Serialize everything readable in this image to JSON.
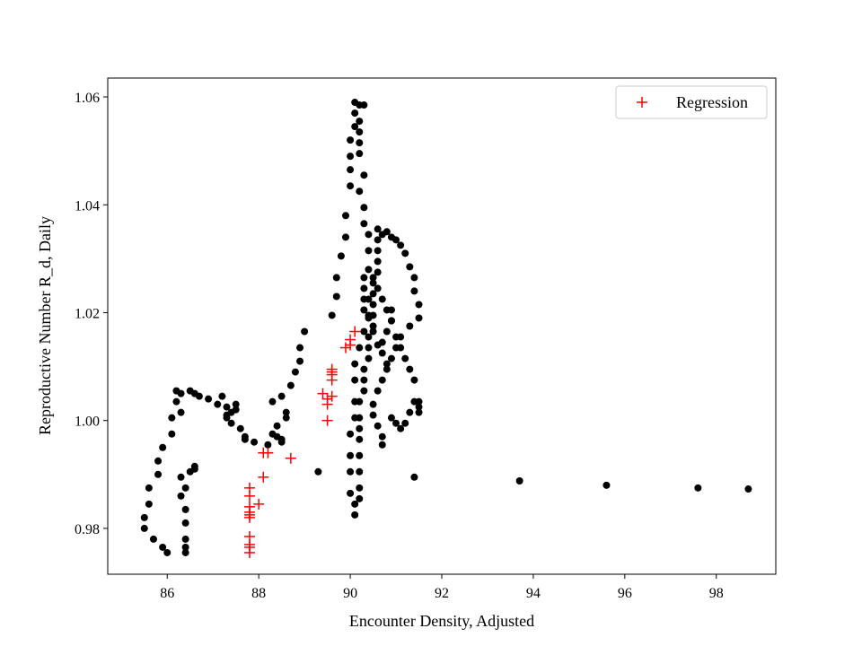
{
  "chart_data": {
    "type": "scatter",
    "title": "",
    "xlabel": "Encounter Density, Adjusted",
    "ylabel": "Reproductive Number R_d, Daily",
    "xlim": [
      84.7,
      99.3
    ],
    "ylim": [
      0.9715,
      1.0635
    ],
    "xticks": [
      86,
      88,
      90,
      92,
      94,
      96,
      98
    ],
    "yticks": [
      0.98,
      1.0,
      1.02,
      1.04,
      1.06
    ],
    "grid": false,
    "legend": {
      "position": "top-right",
      "entries": [
        "Regression"
      ]
    },
    "series": [
      {
        "marker": "dot",
        "color": "#000000",
        "points": [
          [
            85.5,
            0.982
          ],
          [
            85.5,
            0.98
          ],
          [
            85.6,
            0.9845
          ],
          [
            85.6,
            0.9875
          ],
          [
            85.7,
            0.978
          ],
          [
            85.8,
            0.99
          ],
          [
            85.8,
            0.9925
          ],
          [
            85.9,
            0.9765
          ],
          [
            85.9,
            0.995
          ],
          [
            86.0,
            0.9755
          ],
          [
            86.1,
            0.9975
          ],
          [
            86.1,
            1.0005
          ],
          [
            86.2,
            1.0055
          ],
          [
            86.2,
            1.0035
          ],
          [
            86.3,
            1.0015
          ],
          [
            86.3,
            1.005
          ],
          [
            86.3,
            0.986
          ],
          [
            86.3,
            0.9895
          ],
          [
            86.4,
            0.9875
          ],
          [
            86.4,
            0.9835
          ],
          [
            86.4,
            0.981
          ],
          [
            86.4,
            0.978
          ],
          [
            86.4,
            0.9765
          ],
          [
            86.4,
            0.9755
          ],
          [
            86.5,
            0.9905
          ],
          [
            86.5,
            1.0055
          ],
          [
            86.6,
            1.005
          ],
          [
            86.6,
            0.991
          ],
          [
            86.6,
            0.9915
          ],
          [
            86.7,
            1.0045
          ],
          [
            86.9,
            1.004
          ],
          [
            87.1,
            1.003
          ],
          [
            87.2,
            1.0045
          ],
          [
            87.3,
            1.0025
          ],
          [
            87.3,
            1.001
          ],
          [
            87.3,
            1.0005
          ],
          [
            87.4,
            1.0015
          ],
          [
            87.4,
            0.9995
          ],
          [
            87.5,
            1.002
          ],
          [
            87.5,
            1.003
          ],
          [
            87.6,
            0.9985
          ],
          [
            87.7,
            0.997
          ],
          [
            87.7,
            0.9965
          ],
          [
            87.9,
            0.996
          ],
          [
            88.2,
            0.9955
          ],
          [
            88.3,
            0.9975
          ],
          [
            88.4,
            0.999
          ],
          [
            88.4,
            0.997
          ],
          [
            88.5,
            0.9965
          ],
          [
            88.5,
            0.996
          ],
          [
            88.6,
            1.0005
          ],
          [
            88.6,
            1.0015
          ],
          [
            88.3,
            1.0035
          ],
          [
            88.5,
            1.0045
          ],
          [
            88.7,
            1.0065
          ],
          [
            88.8,
            1.009
          ],
          [
            88.9,
            1.011
          ],
          [
            88.9,
            1.0135
          ],
          [
            89.0,
            1.0165
          ],
          [
            89.3,
            0.9905
          ],
          [
            89.6,
            1.0195
          ],
          [
            89.7,
            1.023
          ],
          [
            89.7,
            1.0265
          ],
          [
            89.8,
            1.0305
          ],
          [
            89.9,
            1.034
          ],
          [
            89.9,
            1.038
          ],
          [
            90.0,
            1.0435
          ],
          [
            90.0,
            1.0465
          ],
          [
            90.0,
            1.049
          ],
          [
            90.0,
            1.052
          ],
          [
            90.1,
            1.0545
          ],
          [
            90.1,
            1.057
          ],
          [
            90.1,
            1.059
          ],
          [
            90.2,
            1.0585
          ],
          [
            90.2,
            1.0555
          ],
          [
            90.2,
            1.0535
          ],
          [
            90.2,
            1.0515
          ],
          [
            90.2,
            1.0495
          ],
          [
            90.3,
            1.0585
          ],
          [
            90.2,
            1.0425
          ],
          [
            90.3,
            1.0455
          ],
          [
            90.3,
            1.0395
          ],
          [
            90.3,
            1.0365
          ],
          [
            90.4,
            1.0345
          ],
          [
            90.4,
            1.0315
          ],
          [
            90.4,
            1.028
          ],
          [
            90.3,
            1.0265
          ],
          [
            90.3,
            1.0245
          ],
          [
            90.3,
            1.0225
          ],
          [
            90.4,
            1.0195
          ],
          [
            90.3,
            1.0165
          ],
          [
            90.2,
            1.0135
          ],
          [
            90.1,
            1.0105
          ],
          [
            90.1,
            1.0075
          ],
          [
            90.1,
            1.0035
          ],
          [
            90.1,
            1.0005
          ],
          [
            90.0,
            0.9975
          ],
          [
            90.0,
            0.9935
          ],
          [
            90.0,
            0.9905
          ],
          [
            90.0,
            0.9865
          ],
          [
            90.1,
            0.9845
          ],
          [
            90.1,
            0.9825
          ],
          [
            90.2,
            0.9855
          ],
          [
            90.2,
            0.9875
          ],
          [
            90.2,
            0.9905
          ],
          [
            90.2,
            0.9935
          ],
          [
            90.2,
            0.9965
          ],
          [
            90.2,
            0.9985
          ],
          [
            90.2,
            1.0005
          ],
          [
            90.2,
            1.0035
          ],
          [
            90.3,
            1.0055
          ],
          [
            90.3,
            1.0075
          ],
          [
            90.3,
            1.0095
          ],
          [
            90.4,
            1.0115
          ],
          [
            90.4,
            1.0135
          ],
          [
            90.4,
            1.0155
          ],
          [
            90.5,
            1.0175
          ],
          [
            90.5,
            1.0195
          ],
          [
            90.5,
            1.0215
          ],
          [
            90.5,
            1.0235
          ],
          [
            90.5,
            1.0255
          ],
          [
            90.6,
            1.0275
          ],
          [
            90.6,
            1.0295
          ],
          [
            90.6,
            1.0315
          ],
          [
            90.6,
            1.0335
          ],
          [
            90.6,
            1.0355
          ],
          [
            90.7,
            1.0345
          ],
          [
            90.8,
            1.035
          ],
          [
            90.9,
            1.034
          ],
          [
            91.0,
            1.0335
          ],
          [
            91.1,
            1.0325
          ],
          [
            91.2,
            1.031
          ],
          [
            91.3,
            1.0285
          ],
          [
            91.4,
            1.0265
          ],
          [
            91.4,
            1.024
          ],
          [
            91.5,
            1.0215
          ],
          [
            91.5,
            1.019
          ],
          [
            91.3,
            1.0175
          ],
          [
            91.1,
            1.0155
          ],
          [
            91.0,
            1.0135
          ],
          [
            90.9,
            1.0115
          ],
          [
            90.8,
            1.0095
          ],
          [
            90.7,
            1.0075
          ],
          [
            90.6,
            1.0055
          ],
          [
            90.5,
            1.003
          ],
          [
            90.5,
            1.001
          ],
          [
            90.6,
            0.999
          ],
          [
            90.7,
            0.997
          ],
          [
            90.7,
            0.9955
          ],
          [
            90.9,
            1.0005
          ],
          [
            91.0,
            0.9995
          ],
          [
            91.1,
            0.9985
          ],
          [
            91.2,
            0.9995
          ],
          [
            91.3,
            1.0015
          ],
          [
            91.4,
            1.0035
          ],
          [
            91.5,
            1.0035
          ],
          [
            91.5,
            1.0025
          ],
          [
            91.5,
            1.0015
          ],
          [
            91.4,
            1.0075
          ],
          [
            91.3,
            1.0095
          ],
          [
            91.2,
            1.0115
          ],
          [
            91.1,
            1.0135
          ],
          [
            91.0,
            1.0155
          ],
          [
            90.9,
            1.0185
          ],
          [
            90.8,
            1.0205
          ],
          [
            90.7,
            1.0225
          ],
          [
            90.6,
            1.0245
          ],
          [
            90.5,
            1.0265
          ],
          [
            90.4,
            1.0225
          ],
          [
            90.3,
            1.0205
          ],
          [
            90.4,
            1.019
          ],
          [
            90.5,
            1.0165
          ],
          [
            90.6,
            1.014
          ],
          [
            90.7,
            1.0125
          ],
          [
            90.8,
            1.0105
          ],
          [
            90.7,
            1.0145
          ],
          [
            90.8,
            1.0165
          ],
          [
            90.9,
            1.0185
          ],
          [
            90.9,
            1.0205
          ],
          [
            91.4,
            0.9895
          ],
          [
            93.7,
            0.9888
          ],
          [
            95.6,
            0.988
          ],
          [
            97.6,
            0.9875
          ],
          [
            98.7,
            0.9873
          ]
        ]
      },
      {
        "name": "Regression",
        "marker": "plus",
        "color": "#ff0000",
        "points": [
          [
            87.8,
            0.9875
          ],
          [
            87.8,
            0.986
          ],
          [
            87.8,
            0.984
          ],
          [
            87.8,
            0.983
          ],
          [
            87.8,
            0.9825
          ],
          [
            87.8,
            0.982
          ],
          [
            87.8,
            0.9785
          ],
          [
            87.8,
            0.977
          ],
          [
            87.8,
            0.9765
          ],
          [
            87.8,
            0.9755
          ],
          [
            88.0,
            0.9845
          ],
          [
            88.1,
            0.9895
          ],
          [
            88.1,
            0.994
          ],
          [
            88.2,
            0.994
          ],
          [
            88.7,
            0.993
          ],
          [
            89.5,
            1.0
          ],
          [
            89.4,
            1.005
          ],
          [
            89.5,
            1.003
          ],
          [
            89.5,
            1.004
          ],
          [
            89.6,
            1.0045
          ],
          [
            89.6,
            1.0075
          ],
          [
            89.6,
            1.0085
          ],
          [
            89.6,
            1.009
          ],
          [
            89.6,
            1.0095
          ],
          [
            89.9,
            1.0135
          ],
          [
            90.0,
            1.014
          ],
          [
            90.0,
            1.015
          ],
          [
            90.1,
            1.0165
          ]
        ]
      }
    ]
  }
}
